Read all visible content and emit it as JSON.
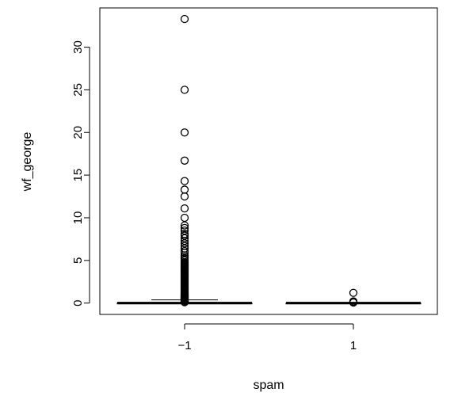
{
  "chart_data": {
    "type": "boxplot",
    "title": "",
    "xlabel": "spam",
    "ylabel": "wf_george",
    "categories": [
      "−1",
      "1"
    ],
    "ylim": [
      -1.33,
      34.6
    ],
    "y_ticks": [
      0,
      5,
      10,
      15,
      20,
      25,
      30
    ],
    "y_tick_labels": [
      "0",
      "5",
      "10",
      "15",
      "20",
      "25",
      "30"
    ],
    "grid": false,
    "legend": "none",
    "colors": {
      "stroke": "#000000",
      "background": "#ffffff"
    },
    "boxes": [
      {
        "category": "−1",
        "min": 0,
        "q1": 0,
        "median": 0,
        "q3": 0,
        "max": 0,
        "outliers": [
          0.1,
          0.15,
          0.2,
          0.25,
          0.3,
          0.35,
          0.4,
          0.45,
          0.5,
          0.55,
          0.6,
          0.65,
          0.7,
          0.75,
          0.8,
          0.85,
          0.9,
          0.95,
          1.0,
          1.1,
          1.2,
          1.3,
          1.4,
          1.5,
          1.6,
          1.7,
          1.8,
          1.9,
          2.0,
          2.1,
          2.2,
          2.3,
          2.4,
          2.5,
          2.6,
          2.7,
          2.8,
          2.9,
          3.0,
          3.1,
          3.2,
          3.3,
          3.4,
          3.5,
          3.6,
          3.7,
          3.8,
          3.9,
          4.0,
          4.1,
          4.2,
          4.3,
          4.4,
          4.5,
          4.6,
          4.7,
          4.8,
          5.0,
          5.2,
          5.4,
          5.6,
          5.9,
          6.1,
          6.4,
          6.7,
          7.0,
          7.3,
          7.6,
          7.9,
          8.1,
          8.5,
          8.8,
          9.1,
          10.0,
          11.1,
          12.5,
          13.3,
          14.3,
          16.7,
          20.0,
          25.0,
          33.3
        ]
      },
      {
        "category": "1",
        "min": 0,
        "q1": 0,
        "median": 0,
        "q3": 0,
        "max": 0,
        "outliers": [
          0.06,
          0.1,
          0.15,
          0.2,
          1.2
        ]
      }
    ]
  }
}
